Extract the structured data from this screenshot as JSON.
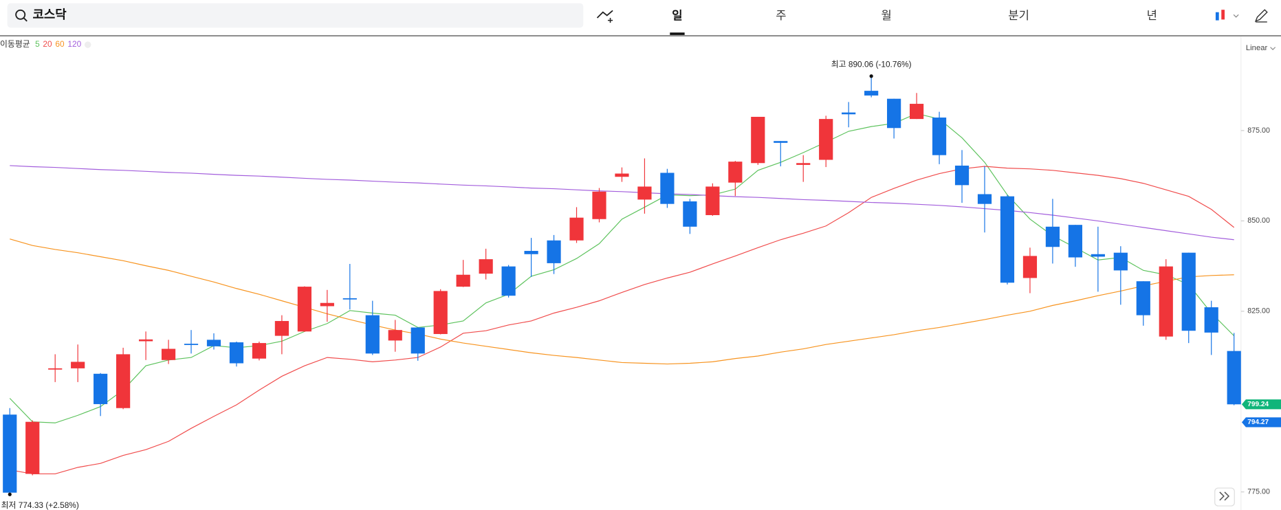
{
  "toolbar": {
    "search": "코스닥",
    "tabs": [
      "일",
      "주",
      "월",
      "분기",
      "년"
    ],
    "selected_tab": 0
  },
  "chart_data": {
    "type": "candlestick",
    "scale_label": "Linear",
    "legend_title": "이동평균",
    "up_color": "#f0353a",
    "down_color": "#1574e6",
    "ylim": [
      770,
      901
    ],
    "yticks": [
      {
        "value": 875,
        "label": "875.00"
      },
      {
        "value": 850,
        "label": "850.00"
      },
      {
        "value": 825,
        "label": "825.00"
      },
      {
        "value": 775,
        "label": "775.00"
      }
    ],
    "categories": [
      null,
      null,
      null,
      null,
      null,
      null,
      null,
      null,
      null,
      null,
      null,
      null,
      null,
      null,
      null,
      null,
      null,
      null,
      null,
      null,
      null,
      null,
      null,
      null,
      null,
      null,
      null,
      null,
      null,
      null,
      null,
      null,
      null,
      null,
      null,
      null,
      null,
      null,
      null,
      null,
      null,
      null,
      null,
      null,
      null,
      null,
      null,
      null,
      null,
      null,
      null,
      null,
      null,
      null,
      null
    ],
    "open": [
      796.4,
      780.0,
      809.0,
      809.2,
      807.7,
      798.2,
      816.7,
      811.5,
      816.0,
      817.1,
      816.4,
      811.9,
      818.2,
      819.4,
      826.4,
      828.6,
      823.9,
      816.9,
      820.5,
      818.7,
      831.8,
      835.4,
      837.4,
      841.7,
      844.6,
      844.6,
      850.5,
      862.2,
      855.9,
      863.3,
      855.4,
      851.6,
      860.6,
      866.0,
      872.1,
      865.5,
      866.9,
      880.0,
      886.0,
      883.8,
      878.2,
      878.6,
      865.3,
      857.4,
      856.8,
      834.2,
      848.4,
      848.9,
      840.8,
      841.2,
      833.3,
      818.0,
      841.2,
      826.1,
      814.0
    ],
    "high": [
      798.2,
      794.8,
      813.1,
      815.8,
      807.9,
      814.9,
      819.4,
      817.1,
      819.8,
      818.9,
      816.6,
      816.6,
      823.9,
      831.9,
      830.9,
      838.1,
      827.9,
      822.6,
      820.6,
      831.1,
      839.2,
      842.3,
      837.8,
      845.3,
      846.1,
      853.8,
      859.1,
      864.8,
      867.3,
      864.4,
      856.1,
      860.4,
      866.6,
      878.8,
      872.1,
      868.2,
      879.1,
      882.9,
      890.06,
      883.8,
      885.4,
      880.2,
      869.6,
      865.1,
      857.2,
      842.6,
      856.1,
      848.9,
      848.4,
      843.0,
      833.3,
      839.4,
      841.2,
      827.9,
      819.0
    ],
    "low": [
      774.33,
      779.6,
      805.4,
      805.4,
      796.0,
      797.9,
      811.5,
      810.4,
      813.3,
      814.4,
      809.7,
      811.4,
      813.1,
      819.3,
      822.1,
      825.5,
      812.9,
      813.8,
      811.3,
      818.6,
      831.7,
      833.8,
      828.8,
      834.5,
      835.3,
      843.9,
      849.6,
      860.8,
      852.0,
      853.6,
      846.4,
      851.4,
      856.9,
      865.5,
      865.1,
      860.8,
      864.9,
      875.9,
      884.2,
      872.8,
      878.2,
      865.7,
      855.0,
      846.8,
      832.4,
      830.0,
      838.2,
      837.3,
      830.4,
      826.8,
      821.0,
      817.1,
      816.2,
      812.9,
      799.0
    ],
    "close": [
      774.8,
      794.4,
      809.2,
      811.0,
      799.3,
      813.1,
      817.2,
      814.6,
      815.8,
      815.3,
      810.6,
      816.2,
      822.3,
      831.8,
      827.3,
      828.4,
      813.3,
      819.8,
      813.3,
      830.6,
      835.1,
      839.4,
      829.3,
      840.8,
      838.3,
      850.9,
      858.1,
      863.1,
      859.5,
      854.7,
      848.4,
      859.5,
      866.4,
      878.8,
      871.6,
      866.0,
      878.2,
      879.5,
      884.7,
      875.7,
      882.4,
      868.2,
      859.9,
      854.7,
      832.9,
      840.3,
      842.8,
      839.9,
      840.1,
      836.3,
      823.9,
      837.4,
      819.6,
      819.1,
      799.24
    ],
    "moving_averages": [
      {
        "name": "5",
        "color": "#5cc25c",
        "values": [
          800.9,
          794.4,
          794.1,
          796.2,
          798.6,
          803.2,
          809.9,
          811.5,
          812.2,
          815.5,
          814.9,
          815.5,
          816.7,
          819.4,
          821.6,
          825.2,
          824.5,
          823.9,
          820.5,
          821.2,
          822.3,
          827.3,
          829.7,
          834.7,
          836.5,
          839.6,
          843.7,
          850.5,
          853.8,
          857.2,
          857.0,
          857.2,
          858.8,
          864.0,
          866.2,
          868.9,
          871.8,
          874.8,
          876.1,
          877.0,
          879.7,
          878.2,
          873.0,
          866.2,
          857.2,
          850.5,
          845.9,
          842.6,
          839.2,
          839.9,
          836.3,
          835.1,
          832.4,
          824.5,
          818.2
        ]
      },
      {
        "name": "20",
        "color": "#f04b4b",
        "values": [
          781.1,
          780.0,
          780.0,
          781.8,
          782.9,
          785.1,
          786.7,
          789.0,
          792.6,
          795.9,
          799.1,
          803.2,
          807.0,
          809.9,
          812.2,
          811.7,
          811.0,
          811.5,
          812.2,
          815.1,
          818.9,
          819.6,
          821.2,
          822.3,
          824.5,
          826.1,
          827.9,
          830.2,
          832.4,
          834.2,
          835.8,
          838.1,
          840.3,
          842.6,
          844.8,
          846.6,
          848.6,
          852.3,
          856.5,
          859.0,
          861.3,
          863.1,
          864.4,
          865.1,
          864.6,
          864.4,
          864.0,
          863.3,
          862.6,
          861.7,
          860.4,
          858.6,
          856.8,
          853.2,
          848.2
        ]
      },
      {
        "name": "60",
        "color": "#f7931e",
        "values": [
          845.0,
          843.2,
          842.1,
          841.2,
          840.1,
          839.0,
          837.6,
          836.3,
          834.7,
          833.1,
          831.3,
          829.7,
          827.9,
          826.1,
          824.3,
          822.7,
          821.2,
          819.8,
          818.7,
          817.3,
          816.2,
          815.3,
          814.4,
          813.5,
          812.8,
          812.2,
          811.5,
          810.8,
          810.6,
          810.4,
          810.6,
          811.0,
          811.9,
          812.6,
          813.7,
          814.6,
          815.8,
          816.7,
          817.6,
          818.5,
          819.6,
          820.5,
          821.6,
          822.7,
          823.9,
          825.0,
          826.6,
          827.9,
          829.3,
          830.6,
          832.0,
          833.3,
          834.5,
          834.9,
          835.1
        ]
      },
      {
        "name": "120",
        "color": "#a25ddc",
        "values": [
          865.3,
          865.0,
          864.8,
          864.5,
          864.2,
          864.0,
          863.7,
          863.4,
          863.2,
          862.9,
          862.6,
          862.4,
          862.1,
          861.8,
          861.5,
          861.3,
          861.0,
          860.7,
          860.5,
          860.2,
          859.9,
          859.7,
          859.4,
          859.1,
          858.9,
          858.6,
          858.3,
          858.1,
          857.8,
          857.5,
          857.3,
          857.0,
          856.7,
          856.5,
          856.2,
          855.9,
          855.7,
          855.4,
          855.1,
          854.9,
          854.6,
          854.3,
          853.9,
          853.4,
          852.9,
          852.3,
          851.6,
          850.8,
          850.0,
          849.1,
          848.2,
          847.3,
          846.4,
          845.5,
          844.8
        ]
      }
    ],
    "annotations": [
      {
        "text": "최고 890.06 (-10.76%)",
        "index": 38,
        "field": "high"
      },
      {
        "text": "최저 774.33 (+2.58%)",
        "index": 0,
        "field": "low"
      }
    ],
    "price_labels": [
      {
        "value": 799.24,
        "color": "#10b57a"
      },
      {
        "value": 794.27,
        "color": "#1574e6"
      }
    ]
  }
}
